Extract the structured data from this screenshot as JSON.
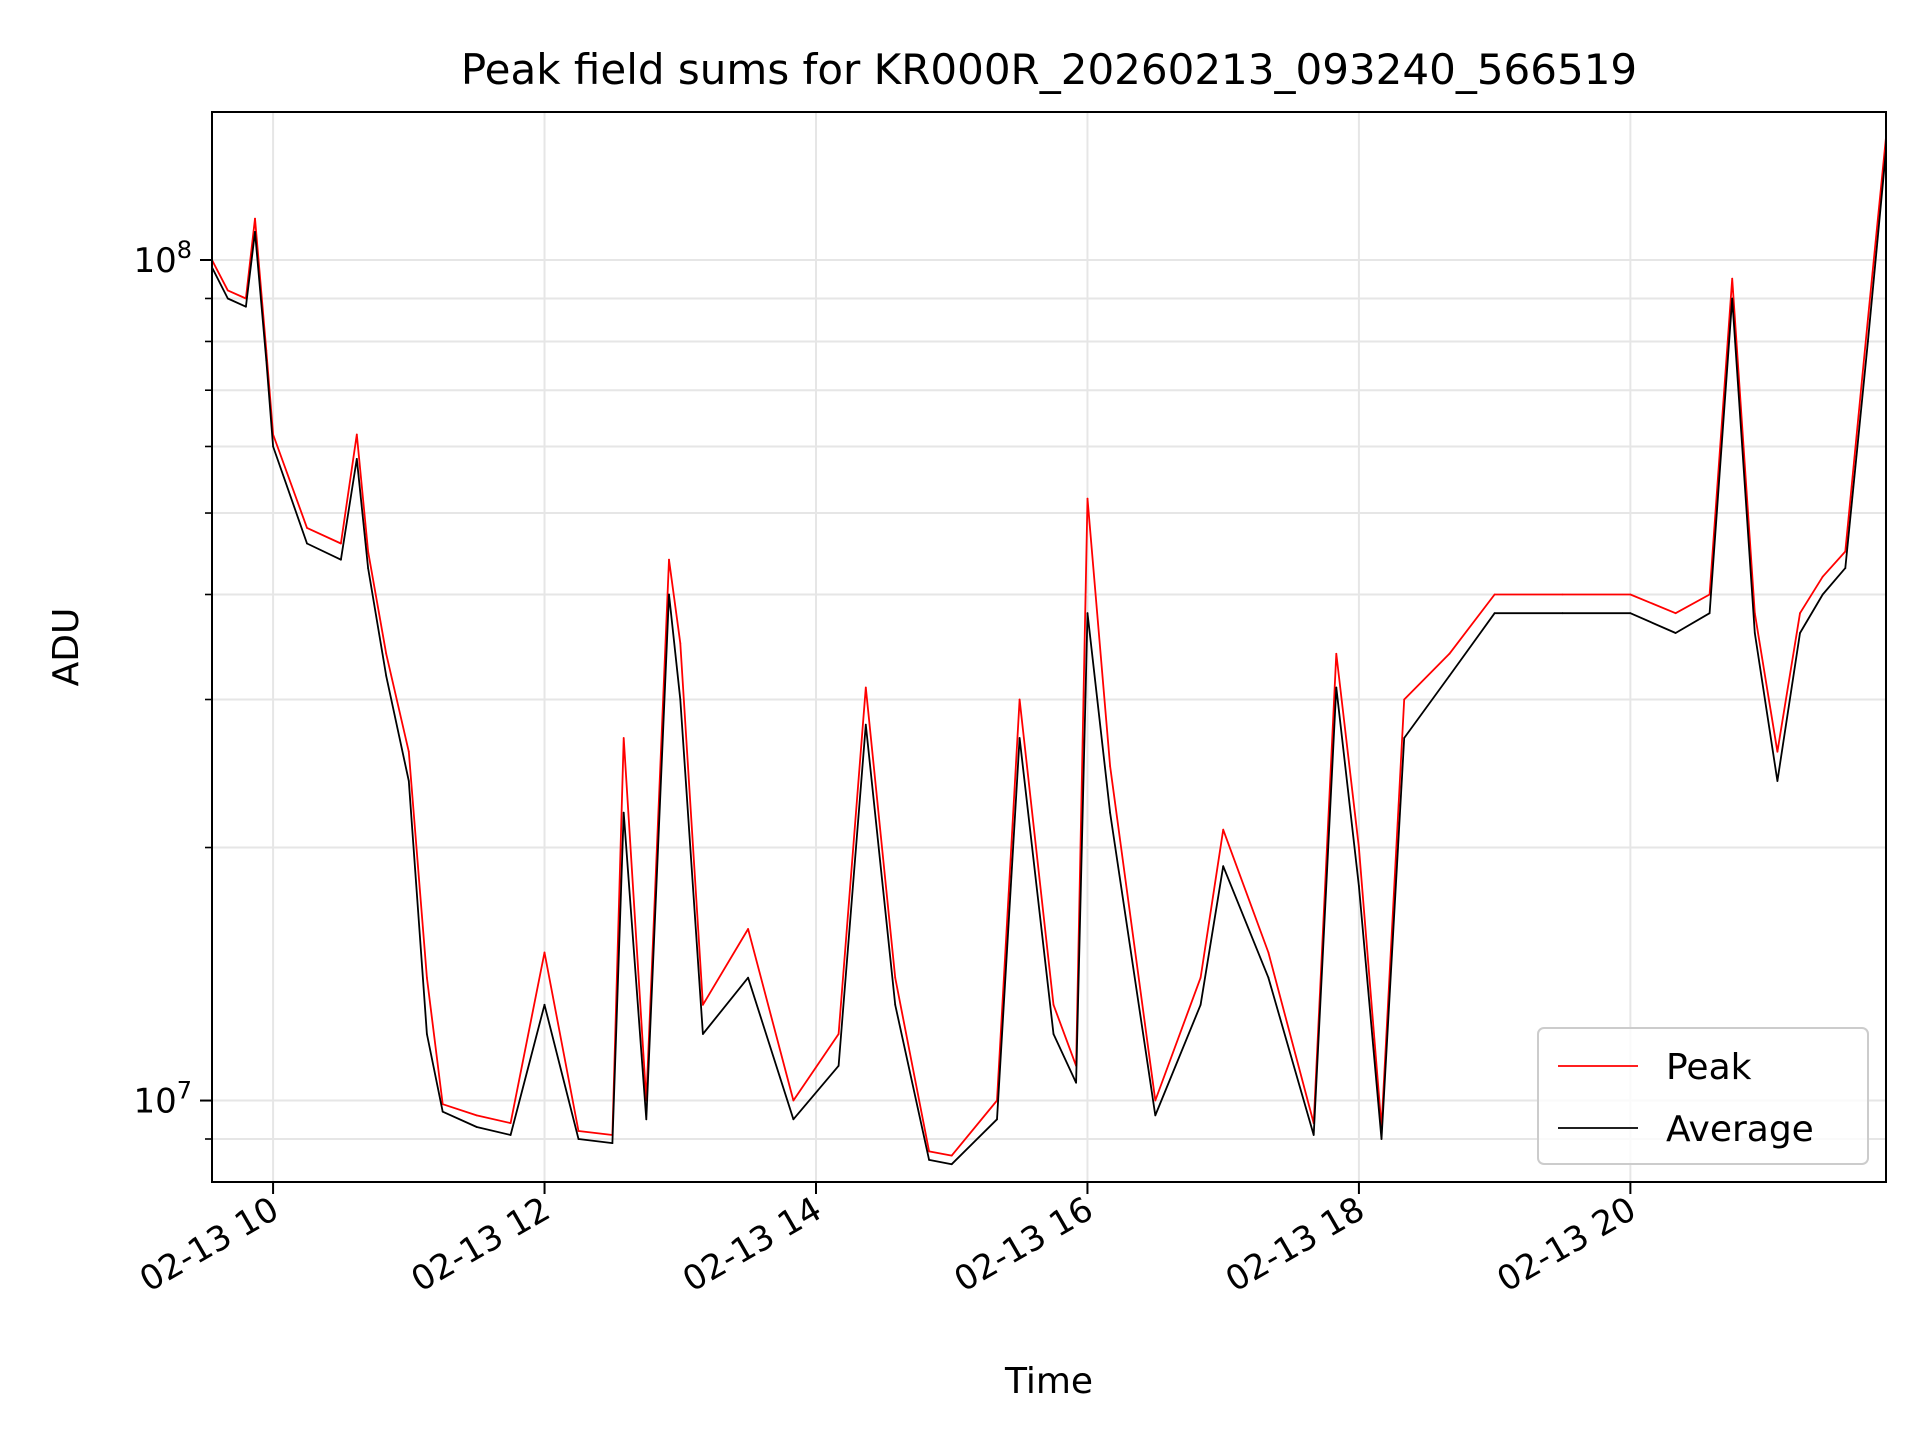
{
  "chart_data": {
    "type": "line",
    "title": "Peak field sums for KR000R_20260213_093240_566519",
    "xlabel": "Time",
    "ylabel": "ADU",
    "yscale": "log",
    "ylim": [
      8000000,
      150000000
    ],
    "xlim": [
      "2026-02-13 09:33",
      "2026-02-13 21:53"
    ],
    "grid": true,
    "legend": "lower-right",
    "x_ticks": [
      {
        "x": "2026-02-13 10:00",
        "label": "02-13 10"
      },
      {
        "x": "2026-02-13 12:00",
        "label": "02-13 12"
      },
      {
        "x": "2026-02-13 14:00",
        "label": "02-13 14"
      },
      {
        "x": "2026-02-13 16:00",
        "label": "02-13 16"
      },
      {
        "x": "2026-02-13 18:00",
        "label": "02-13 18"
      },
      {
        "x": "2026-02-13 20:00",
        "label": "02-13 20"
      }
    ],
    "y_ticks": [
      {
        "y": 10000000,
        "base": "10",
        "exp": "7"
      },
      {
        "y": 100000000,
        "base": "10",
        "exp": "8"
      }
    ],
    "y_minor_ticks": [
      9000000,
      20000000,
      30000000,
      40000000,
      50000000,
      60000000,
      70000000,
      80000000,
      90000000
    ],
    "series": [
      {
        "name": "Peak",
        "color": "#ff0000",
        "x": [
          "2026-02-13 09:33",
          "2026-02-13 09:40",
          "2026-02-13 09:48",
          "2026-02-13 09:52",
          "2026-02-13 09:57",
          "2026-02-13 10:00",
          "2026-02-13 10:15",
          "2026-02-13 10:30",
          "2026-02-13 10:37",
          "2026-02-13 10:42",
          "2026-02-13 10:50",
          "2026-02-13 11:00",
          "2026-02-13 11:08",
          "2026-02-13 11:15",
          "2026-02-13 11:30",
          "2026-02-13 11:45",
          "2026-02-13 12:00",
          "2026-02-13 12:15",
          "2026-02-13 12:30",
          "2026-02-13 12:35",
          "2026-02-13 12:45",
          "2026-02-13 12:55",
          "2026-02-13 13:00",
          "2026-02-13 13:10",
          "2026-02-13 13:30",
          "2026-02-13 13:50",
          "2026-02-13 14:10",
          "2026-02-13 14:22",
          "2026-02-13 14:35",
          "2026-02-13 14:50",
          "2026-02-13 15:00",
          "2026-02-13 15:20",
          "2026-02-13 15:30",
          "2026-02-13 15:45",
          "2026-02-13 15:55",
          "2026-02-13 16:00",
          "2026-02-13 16:10",
          "2026-02-13 16:30",
          "2026-02-13 16:50",
          "2026-02-13 17:00",
          "2026-02-13 17:20",
          "2026-02-13 17:40",
          "2026-02-13 17:50",
          "2026-02-13 18:00",
          "2026-02-13 18:10",
          "2026-02-13 18:20",
          "2026-02-13 18:40",
          "2026-02-13 19:00",
          "2026-02-13 19:30",
          "2026-02-13 20:00",
          "2026-02-13 20:20",
          "2026-02-13 20:35",
          "2026-02-13 20:45",
          "2026-02-13 20:55",
          "2026-02-13 21:05",
          "2026-02-13 21:15",
          "2026-02-13 21:25",
          "2026-02-13 21:35",
          "2026-02-13 21:45",
          "2026-02-13 21:53"
        ],
        "values": [
          100000000,
          92000000,
          90000000,
          112000000,
          78000000,
          62000000,
          48000000,
          46000000,
          62000000,
          45000000,
          34000000,
          26000000,
          14000000,
          9900000,
          9600000,
          9400000,
          15000000,
          9200000,
          9100000,
          27000000,
          10000000,
          44000000,
          35000000,
          13000000,
          16000000,
          10000000,
          12000000,
          31000000,
          14000000,
          8700000,
          8600000,
          10000000,
          30000000,
          13000000,
          11000000,
          52000000,
          25000000,
          10000000,
          14000000,
          21000000,
          15000000,
          9400000,
          34000000,
          20000000,
          9300000,
          30000000,
          34000000,
          40000000,
          40000000,
          40000000,
          38000000,
          40000000,
          95000000,
          38000000,
          26000000,
          38000000,
          42000000,
          45000000,
          85000000,
          140000000
        ]
      },
      {
        "name": "Average",
        "color": "#000000",
        "x": [
          "2026-02-13 09:33",
          "2026-02-13 09:40",
          "2026-02-13 09:48",
          "2026-02-13 09:52",
          "2026-02-13 09:57",
          "2026-02-13 10:00",
          "2026-02-13 10:15",
          "2026-02-13 10:30",
          "2026-02-13 10:37",
          "2026-02-13 10:42",
          "2026-02-13 10:50",
          "2026-02-13 11:00",
          "2026-02-13 11:08",
          "2026-02-13 11:15",
          "2026-02-13 11:30",
          "2026-02-13 11:45",
          "2026-02-13 12:00",
          "2026-02-13 12:15",
          "2026-02-13 12:30",
          "2026-02-13 12:35",
          "2026-02-13 12:45",
          "2026-02-13 12:55",
          "2026-02-13 13:00",
          "2026-02-13 13:10",
          "2026-02-13 13:30",
          "2026-02-13 13:50",
          "2026-02-13 14:10",
          "2026-02-13 14:22",
          "2026-02-13 14:35",
          "2026-02-13 14:50",
          "2026-02-13 15:00",
          "2026-02-13 15:20",
          "2026-02-13 15:30",
          "2026-02-13 15:45",
          "2026-02-13 15:55",
          "2026-02-13 16:00",
          "2026-02-13 16:10",
          "2026-02-13 16:30",
          "2026-02-13 16:50",
          "2026-02-13 17:00",
          "2026-02-13 17:20",
          "2026-02-13 17:40",
          "2026-02-13 17:50",
          "2026-02-13 18:00",
          "2026-02-13 18:10",
          "2026-02-13 18:20",
          "2026-02-13 18:40",
          "2026-02-13 19:00",
          "2026-02-13 19:30",
          "2026-02-13 20:00",
          "2026-02-13 20:20",
          "2026-02-13 20:35",
          "2026-02-13 20:45",
          "2026-02-13 20:55",
          "2026-02-13 21:05",
          "2026-02-13 21:15",
          "2026-02-13 21:25",
          "2026-02-13 21:35",
          "2026-02-13 21:45",
          "2026-02-13 21:53"
        ],
        "values": [
          98000000,
          90000000,
          88000000,
          108000000,
          76000000,
          60000000,
          46000000,
          44000000,
          58000000,
          43000000,
          32000000,
          24000000,
          12000000,
          9700000,
          9300000,
          9100000,
          13000000,
          9000000,
          8900000,
          22000000,
          9500000,
          40000000,
          30000000,
          12000000,
          14000000,
          9500000,
          11000000,
          28000000,
          13000000,
          8500000,
          8400000,
          9500000,
          27000000,
          12000000,
          10500000,
          38000000,
          22000000,
          9600000,
          13000000,
          19000000,
          14000000,
          9100000,
          31000000,
          18000000,
          9000000,
          27000000,
          32000000,
          38000000,
          38000000,
          38000000,
          36000000,
          38000000,
          90000000,
          36000000,
          24000000,
          36000000,
          40000000,
          43000000,
          80000000,
          135000000
        ]
      }
    ]
  }
}
